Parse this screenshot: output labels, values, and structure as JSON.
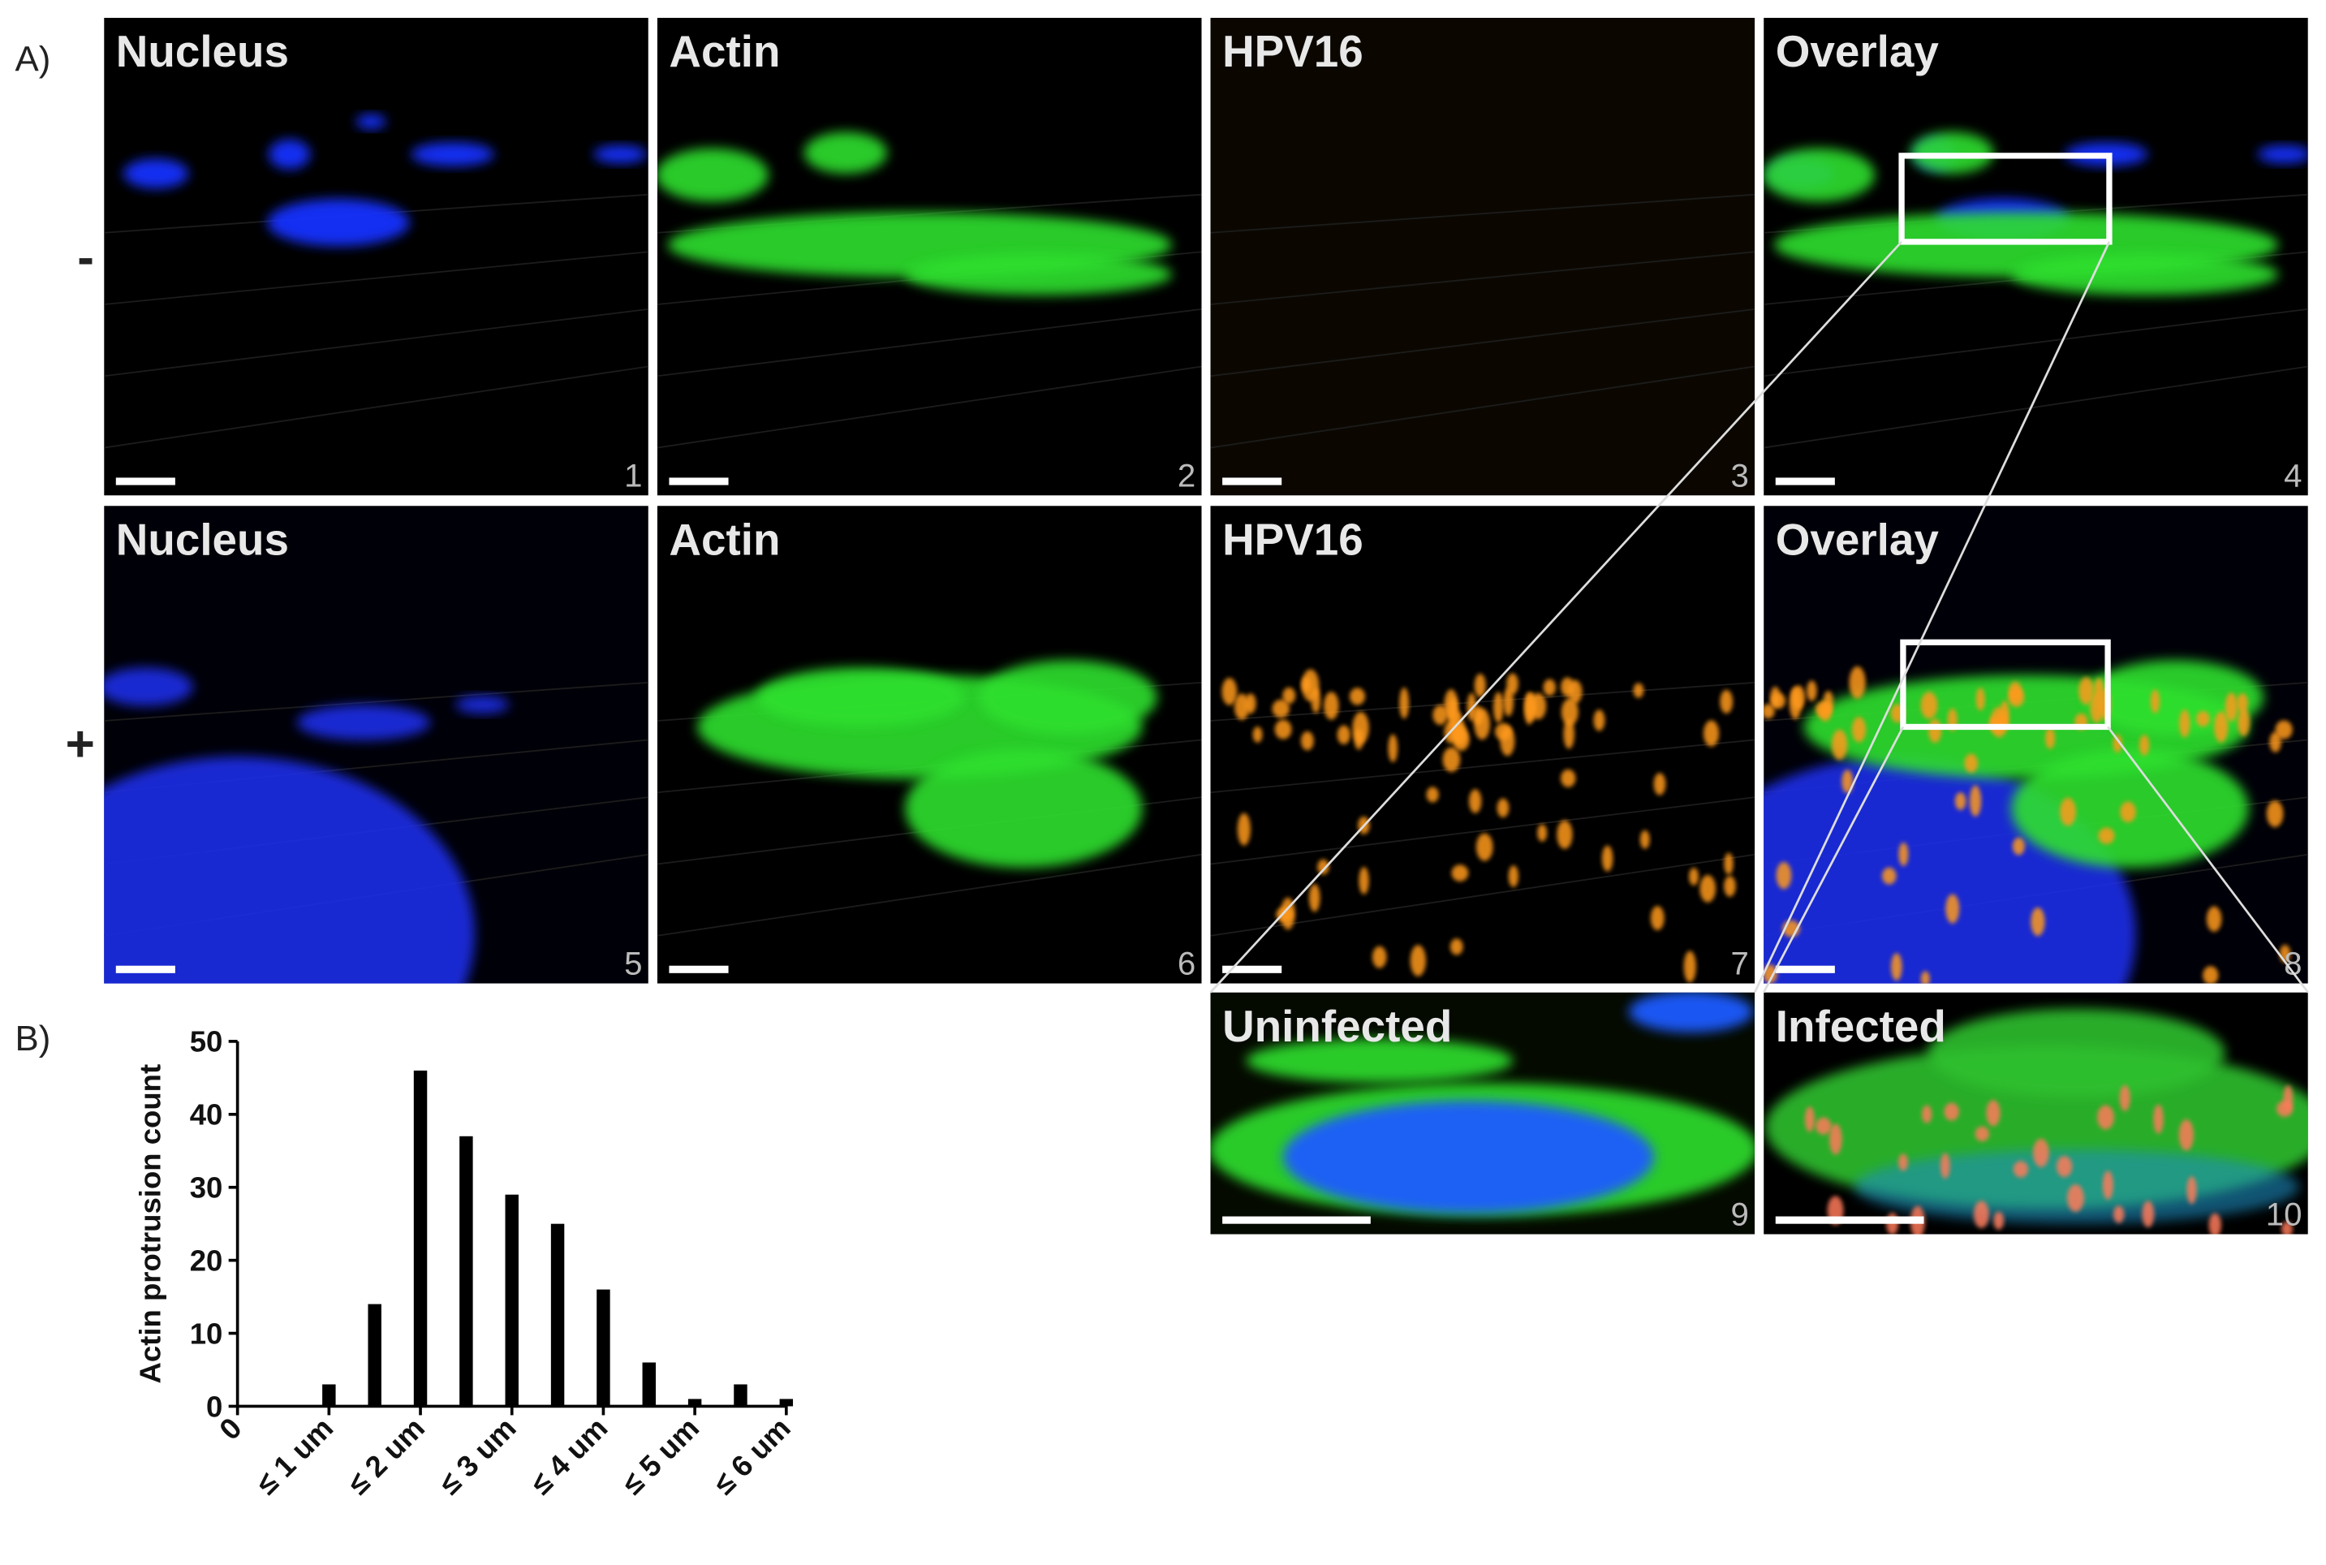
{
  "figure": {
    "label_a": "A)",
    "row_labels": [
      "-",
      "+"
    ],
    "panels": [
      {
        "title": "Nucleus",
        "number": 1
      },
      {
        "title": "Actin",
        "number": 2
      },
      {
        "title": "HPV16",
        "number": 3
      },
      {
        "title": "Overlay",
        "number": 4
      },
      {
        "title": "Nucleus",
        "number": 5
      },
      {
        "title": "Actin",
        "number": 6
      },
      {
        "title": "HPV16",
        "number": 7
      },
      {
        "title": "Overlay",
        "number": 8
      },
      {
        "title": "Uninfected",
        "number": 9
      },
      {
        "title": "Infected",
        "number": 10
      }
    ],
    "label_b": "B)"
  },
  "chart_data": {
    "type": "bar",
    "y_label": "Actin protrusion count",
    "x": [
      1,
      1.5,
      2,
      2.5,
      3,
      3.5,
      4,
      4.5,
      5,
      5.5,
      6
    ],
    "values": [
      3,
      14,
      46,
      37,
      29,
      25,
      16,
      6,
      1,
      3,
      1
    ],
    "color": "#000000",
    "xlim": [
      0,
      6
    ],
    "xticks": [
      0,
      {
        "value": 1,
        "label": "≤ 1 um"
      },
      {
        "value": 2,
        "label": "≤ 2 um"
      },
      {
        "value": 3,
        "label": "≤ 3 um"
      },
      {
        "value": 4,
        "label": "≤ 4 um"
      },
      {
        "value": 5,
        "label": "≤ 5 um"
      },
      {
        "value": 6,
        "label": "≤ 6 um"
      }
    ],
    "ylim": [
      0,
      50
    ],
    "yticks": [
      0,
      10,
      20,
      30,
      40,
      50
    ],
    "grid": false
  }
}
